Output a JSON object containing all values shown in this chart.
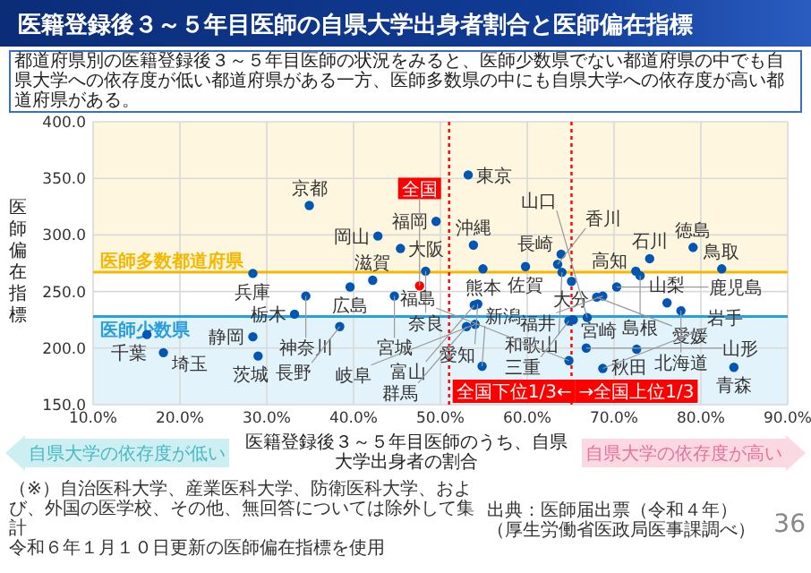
{
  "chart_data": {
    "type": "scatter",
    "title": "医籍登録後３～５年目医師の自県大学出身者割合と医師偏在指標",
    "subtitle": "都道府県別の医籍登録後３～５年目医師の状況をみると、医師少数県でない都道府県の中でも自県大学への依存度が低い都道府県がある一方、医師多数県の中にも自県大学への依存度が高い都道府県がある。",
    "xlabel": "医籍登録後３～５年目医師のうち、自県大学出身者の割合",
    "ylabel": "医師偏在指標",
    "xlim": [
      10,
      90
    ],
    "ylim": [
      150,
      400
    ],
    "xticks": [
      {
        "value": 10,
        "label": "10.0%"
      },
      {
        "value": 20,
        "label": "20.0%"
      },
      {
        "value": 30,
        "label": "30.0%"
      },
      {
        "value": 40,
        "label": "40.0%"
      },
      {
        "value": 50,
        "label": "50.0%"
      },
      {
        "value": 60,
        "label": "60.0%"
      },
      {
        "value": 70,
        "label": "70.0%"
      },
      {
        "value": 80,
        "label": "80.0%"
      },
      {
        "value": 90,
        "label": "90.0%"
      }
    ],
    "yticks": [
      {
        "value": 150,
        "label": "150.0"
      },
      {
        "value": 200,
        "label": "200.0"
      },
      {
        "value": 250,
        "label": "250.0"
      },
      {
        "value": 300,
        "label": "300.0"
      },
      {
        "value": 350,
        "label": "350.0"
      },
      {
        "value": 400,
        "label": "400.0"
      }
    ],
    "grid": true,
    "marker": "circle",
    "series": [
      {
        "color": "#0056b3",
        "x": [
          53.2,
          34.9,
          49.5,
          42.8,
          45.4,
          53.8,
          79.1,
          63.9,
          74.1,
          63.5,
          59.8,
          54.9,
          82.4,
          48.3,
          72.5,
          64.0,
          28.4,
          73.0,
          42.2,
          65.1,
          39.6,
          70.3,
          34.5,
          44.7,
          68.0,
          68.7,
          76.1,
          54.3,
          53.9,
          77.7,
          33.2,
          66.9,
          65.3,
          64.8,
          54.0,
          38.4,
          53.0,
          16.2,
          28.4,
          66.8,
          72.6,
          18.1,
          29.0,
          64.8,
          54.8,
          83.8,
          68.7
        ],
        "values": [
          353,
          326,
          312,
          299,
          288,
          291,
          289,
          283,
          279,
          274,
          272,
          270,
          270,
          268,
          268,
          267,
          266,
          264,
          260,
          259,
          254,
          254,
          246,
          246,
          245,
          246,
          240,
          239,
          238,
          233,
          230,
          227,
          225,
          224,
          221,
          219,
          219,
          212,
          210,
          200,
          199,
          196,
          193,
          189,
          184,
          183,
          182
        ]
      },
      {
        "color": "#ff0000",
        "x": [
          47.6
        ],
        "values": [
          255
        ]
      }
    ],
    "bands": [
      {
        "axis": "y",
        "from": 267,
        "to": 400,
        "label": "医師多数都道府県",
        "color": "#f5b800"
      },
      {
        "axis": "y",
        "from": 150,
        "to": 228,
        "label": "医師少数県",
        "color": "#2a9fdf"
      }
    ],
    "ref_lines": [
      {
        "axis": "y",
        "value": 267,
        "color": "#f5b800"
      },
      {
        "axis": "y",
        "value": 228,
        "color": "#2a9fdf"
      },
      {
        "axis": "x",
        "value": 51.0,
        "label": "全国下位1/3←",
        "color": "#ff0000",
        "line_style": "dotted"
      },
      {
        "axis": "x",
        "value": 65.1,
        "label": "→全国上位1/3",
        "color": "#ff0000",
        "line_style": "dotted"
      }
    ],
    "annotations": [
      {
        "text": "東京",
        "x": 53.2,
        "y": 353
      },
      {
        "text": "京都",
        "x": 34.9,
        "y": 326
      },
      {
        "text": "福岡",
        "x": 49.5,
        "y": 312
      },
      {
        "text": "岡山",
        "x": 42.8,
        "y": 299
      },
      {
        "text": "大阪",
        "x": 45.4,
        "y": 288
      },
      {
        "text": "沖縄",
        "x": 53.8,
        "y": 291
      },
      {
        "text": "徳島",
        "x": 79.1,
        "y": 289
      },
      {
        "text": "長崎",
        "x": 63.9,
        "y": 283
      },
      {
        "text": "石川",
        "x": 74.1,
        "y": 279
      },
      {
        "text": "香川",
        "x": 63.5,
        "y": 274
      },
      {
        "text": "佐賀",
        "x": 59.8,
        "y": 272
      },
      {
        "text": "熊本",
        "x": 54.9,
        "y": 270
      },
      {
        "text": "鳥取",
        "x": 82.4,
        "y": 270
      },
      {
        "text": "奈良",
        "x": 48.3,
        "y": 268
      },
      {
        "text": "高知",
        "x": 72.5,
        "y": 268
      },
      {
        "text": "和歌山",
        "x": 64.0,
        "y": 267
      },
      {
        "text": "兵庫",
        "x": 28.4,
        "y": 266
      },
      {
        "text": "島根",
        "x": 73.0,
        "y": 264
      },
      {
        "text": "滋賀",
        "x": 42.2,
        "y": 260
      },
      {
        "text": "大分",
        "x": 65.1,
        "y": 259
      },
      {
        "text": "広島",
        "x": 39.6,
        "y": 254
      },
      {
        "text": "鹿児島",
        "x": 70.3,
        "y": 254
      },
      {
        "text": "神奈川",
        "x": 34.5,
        "y": 246
      },
      {
        "text": "宮城",
        "x": 44.7,
        "y": 246
      },
      {
        "text": "愛媛",
        "x": 68.0,
        "y": 245
      },
      {
        "text": "福井",
        "x": 68.7,
        "y": 246
      },
      {
        "text": "山梨",
        "x": 76.1,
        "y": 240
      },
      {
        "text": "愛知",
        "x": 54.3,
        "y": 239
      },
      {
        "text": "富山",
        "x": 53.9,
        "y": 238
      },
      {
        "text": "北海道",
        "x": 77.7,
        "y": 233
      },
      {
        "text": "栃木",
        "x": 33.2,
        "y": 230
      },
      {
        "text": "山口",
        "x": 66.9,
        "y": 227
      },
      {
        "text": "宮崎",
        "x": 65.3,
        "y": 225
      },
      {
        "text": "三重",
        "x": 64.8,
        "y": 224
      },
      {
        "text": "岐阜",
        "x": 54.0,
        "y": 221
      },
      {
        "text": "長野",
        "x": 38.4,
        "y": 219
      },
      {
        "text": "群馬",
        "x": 53.0,
        "y": 219
      },
      {
        "text": "千葉",
        "x": 16.2,
        "y": 212
      },
      {
        "text": "静岡",
        "x": 28.4,
        "y": 210
      },
      {
        "text": "山形",
        "x": 66.8,
        "y": 200
      },
      {
        "text": "秋田",
        "x": 72.6,
        "y": 199
      },
      {
        "text": "埼玉",
        "x": 18.1,
        "y": 196
      },
      {
        "text": "茨城",
        "x": 29.0,
        "y": 193
      },
      {
        "text": "福島",
        "x": 64.8,
        "y": 189
      },
      {
        "text": "新潟",
        "x": 54.8,
        "y": 184
      },
      {
        "text": "青森",
        "x": 83.8,
        "y": 183
      },
      {
        "text": "岩手",
        "x": 68.7,
        "y": 182
      },
      {
        "text": "全国",
        "x": 47.6,
        "y": 255
      },
      "自県大学の依存度が低い",
      "自県大学の依存度が高い",
      "（※）自治医科大学、産業医科大学、防衛医科大学、および、外国の医学校、その他、無回答については除外して集計",
      "令和６年１月１０日更新の医師偏在指標を使用",
      "出典：医師届出票（令和４年）（厚生労働省医政局医事課調べ）",
      "36"
    ]
  }
}
